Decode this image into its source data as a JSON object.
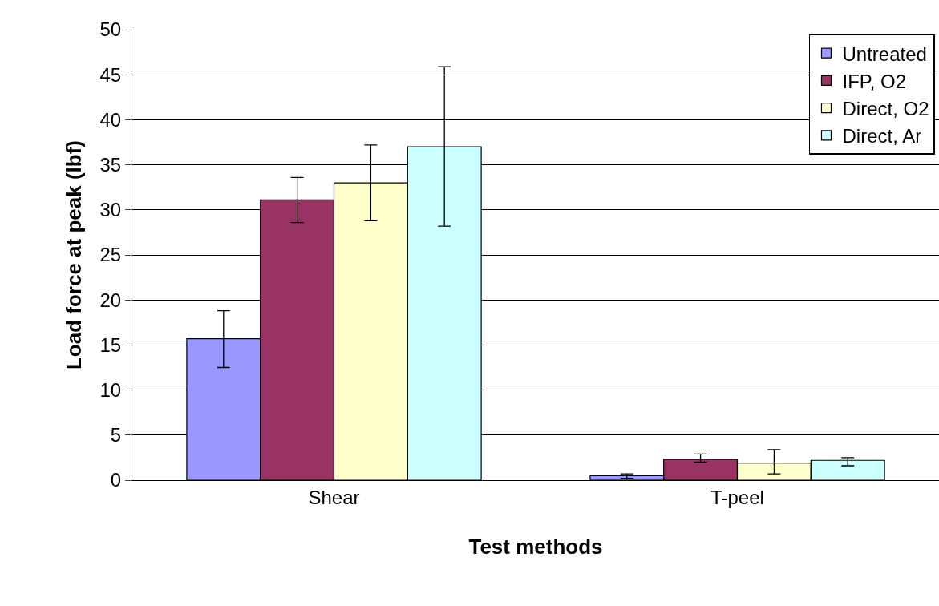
{
  "chart_data": {
    "type": "bar",
    "xlabel": "Test methods",
    "ylabel": "Load force at peak (lbf)",
    "categories": [
      "Shear",
      "T-peel"
    ],
    "series": [
      {
        "name": "Untreated",
        "color": "#9999ff",
        "values": [
          15.7,
          0.5
        ],
        "errors": [
          [
            12.5,
            18.8
          ],
          [
            0.2,
            0.7
          ]
        ]
      },
      {
        "name": "IFP, O2",
        "color": "#993366",
        "values": [
          31.1,
          2.3
        ],
        "errors": [
          [
            28.6,
            33.6
          ],
          [
            2.0,
            2.9
          ]
        ]
      },
      {
        "name": "Direct, O2",
        "color": "#ffffcc",
        "values": [
          33.0,
          1.9
        ],
        "errors": [
          [
            28.8,
            37.2
          ],
          [
            0.7,
            3.4
          ]
        ]
      },
      {
        "name": "Direct, Ar",
        "color": "#ccffff",
        "values": [
          37.0,
          2.2
        ],
        "errors": [
          [
            28.2,
            45.9
          ],
          [
            1.6,
            2.5
          ]
        ]
      }
    ],
    "ylim": [
      0,
      50
    ],
    "yticks": [
      0,
      5,
      10,
      15,
      20,
      25,
      30,
      35,
      40,
      45,
      50
    ],
    "grid": "y",
    "legend": "top right"
  }
}
